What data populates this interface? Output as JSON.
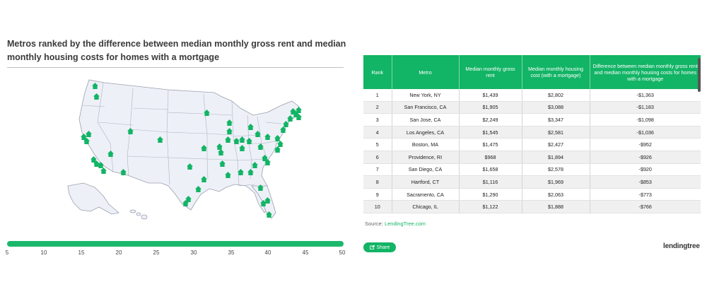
{
  "chart": {
    "title": "Metros ranked by the difference between median monthly gross rent and median monthly housing costs for homes with a mortgage"
  },
  "slider": {
    "min": 5,
    "max": 50,
    "ticks": [
      "5",
      "10",
      "15",
      "20",
      "25",
      "30",
      "35",
      "40",
      "45",
      "50"
    ]
  },
  "table": {
    "headers": [
      "Rank",
      "Metro",
      "Median monthly gross rent",
      "Median monthly housing cost (with a mortgage)",
      "Difference between median monthly gross rent and median monthly housing costs for homes with a mortgage"
    ],
    "rows": [
      [
        "1",
        "New York, NY",
        "$1,439",
        "$2,802",
        "-$1,363"
      ],
      [
        "2",
        "San Francisco, CA",
        "$1,905",
        "$3,088",
        "-$1,183"
      ],
      [
        "3",
        "San Jose, CA",
        "$2,249",
        "$3,347",
        "-$1,098"
      ],
      [
        "4",
        "Los Angeles, CA",
        "$1,545",
        "$2,581",
        "-$1,036"
      ],
      [
        "5",
        "Boston, MA",
        "$1,475",
        "$2,427",
        "-$952"
      ],
      [
        "6",
        "Providence, RI",
        "$968",
        "$1,894",
        "-$926"
      ],
      [
        "7",
        "San Diego, CA",
        "$1,658",
        "$2,578",
        "-$920"
      ],
      [
        "8",
        "Hartford, CT",
        "$1,116",
        "$1,969",
        "-$853"
      ],
      [
        "9",
        "Sacramento, CA",
        "$1,290",
        "$2,063",
        "-$773"
      ],
      [
        "10",
        "Chicago, IL",
        "$1,122",
        "$1,888",
        "-$766"
      ]
    ]
  },
  "source": {
    "label": "Source:",
    "link": "LendingTree.com"
  },
  "share": {
    "label": "Share"
  },
  "logo": {
    "text": "lendingtree"
  },
  "colors": {
    "accent": "#12b465",
    "map_fill": "#eef0f8",
    "map_stroke": "#9aa0ad"
  }
}
